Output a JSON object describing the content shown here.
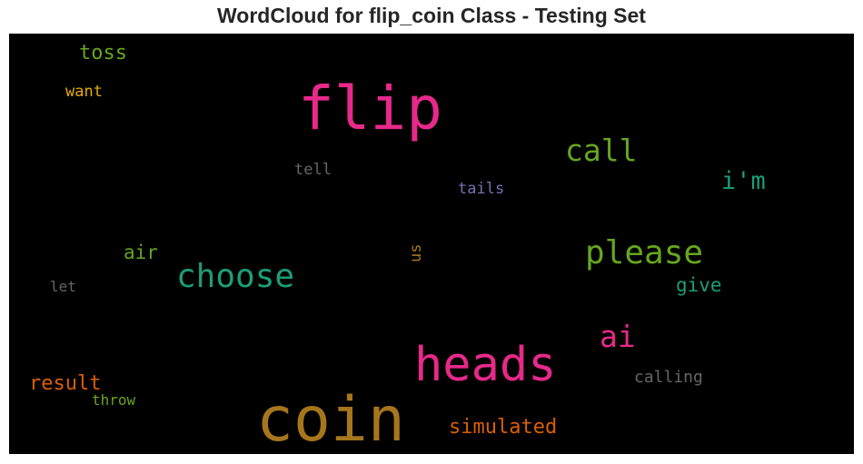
{
  "chart_data": {
    "type": "wordcloud",
    "title": "WordCloud for flip_coin Class - Testing Set",
    "words": [
      {
        "text": "flip",
        "color": "#e7298a"
      },
      {
        "text": "coin",
        "color": "#a6761d"
      },
      {
        "text": "heads",
        "color": "#e7298a"
      },
      {
        "text": "choose",
        "color": "#1b9e77"
      },
      {
        "text": "please",
        "color": "#66a61e"
      },
      {
        "text": "call",
        "color": "#66a61e"
      },
      {
        "text": "ai",
        "color": "#e7298a"
      },
      {
        "text": "i'm",
        "color": "#1b9e77"
      },
      {
        "text": "simulated",
        "color": "#d95f02"
      },
      {
        "text": "result",
        "color": "#d95f02"
      },
      {
        "text": "toss",
        "color": "#66a61e"
      },
      {
        "text": "give",
        "color": "#1b9e77"
      },
      {
        "text": "air",
        "color": "#66a61e"
      },
      {
        "text": "calling",
        "color": "#666666"
      },
      {
        "text": "want",
        "color": "#e6ab02"
      },
      {
        "text": "tell",
        "color": "#666666"
      },
      {
        "text": "tails",
        "color": "#7570b3"
      },
      {
        "text": "us",
        "color": "#a6761d"
      },
      {
        "text": "let",
        "color": "#666666"
      },
      {
        "text": "throw",
        "color": "#66a61e"
      }
    ]
  }
}
